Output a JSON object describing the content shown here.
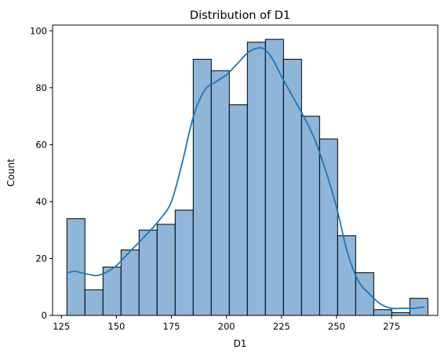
{
  "chart_data": {
    "type": "histogram",
    "title": "Distribution of D1",
    "xlabel": "D1",
    "ylabel": "Count",
    "xlim": [
      121,
      296
    ],
    "ylim": [
      0,
      102
    ],
    "xticks": [
      125,
      150,
      175,
      200,
      225,
      250,
      275
    ],
    "yticks": [
      0,
      20,
      40,
      60,
      80,
      100
    ],
    "bin_width": 8.2,
    "bins": [
      {
        "start": 127.5,
        "count": 34
      },
      {
        "start": 135.7,
        "count": 9
      },
      {
        "start": 143.9,
        "count": 17
      },
      {
        "start": 152.1,
        "count": 23
      },
      {
        "start": 160.3,
        "count": 30
      },
      {
        "start": 168.5,
        "count": 32
      },
      {
        "start": 176.7,
        "count": 37
      },
      {
        "start": 184.9,
        "count": 90
      },
      {
        "start": 193.1,
        "count": 86
      },
      {
        "start": 201.3,
        "count": 74
      },
      {
        "start": 209.5,
        "count": 96
      },
      {
        "start": 217.7,
        "count": 97
      },
      {
        "start": 225.9,
        "count": 90
      },
      {
        "start": 234.1,
        "count": 70
      },
      {
        "start": 242.3,
        "count": 62
      },
      {
        "start": 250.5,
        "count": 28
      },
      {
        "start": 258.7,
        "count": 15
      },
      {
        "start": 266.9,
        "count": 2
      },
      {
        "start": 275.1,
        "count": 1
      },
      {
        "start": 283.3,
        "count": 6
      }
    ],
    "kde": {
      "x": [
        128,
        131,
        134,
        137,
        141,
        145,
        150,
        155,
        160,
        165,
        170,
        175,
        180,
        185,
        190,
        195,
        200,
        205,
        210,
        215,
        218,
        221,
        225,
        230,
        235,
        240,
        245,
        250,
        255,
        260,
        265,
        270,
        275,
        280,
        285,
        290
      ],
      "y": [
        15,
        15.5,
        15,
        14.5,
        14,
        15,
        17.5,
        21.5,
        25.5,
        29.5,
        34,
        40,
        54,
        70,
        79,
        82,
        84.5,
        88.5,
        92.5,
        94,
        93,
        90,
        84,
        77,
        70,
        62,
        51,
        38,
        22,
        12,
        7.5,
        4,
        2.5,
        2.5,
        2.5,
        3
      ]
    },
    "colors": {
      "bar_fill": "#8fb5d9",
      "bar_edge": "#000000",
      "kde_line": "#1f77b4"
    },
    "grid": false,
    "legend": false
  }
}
